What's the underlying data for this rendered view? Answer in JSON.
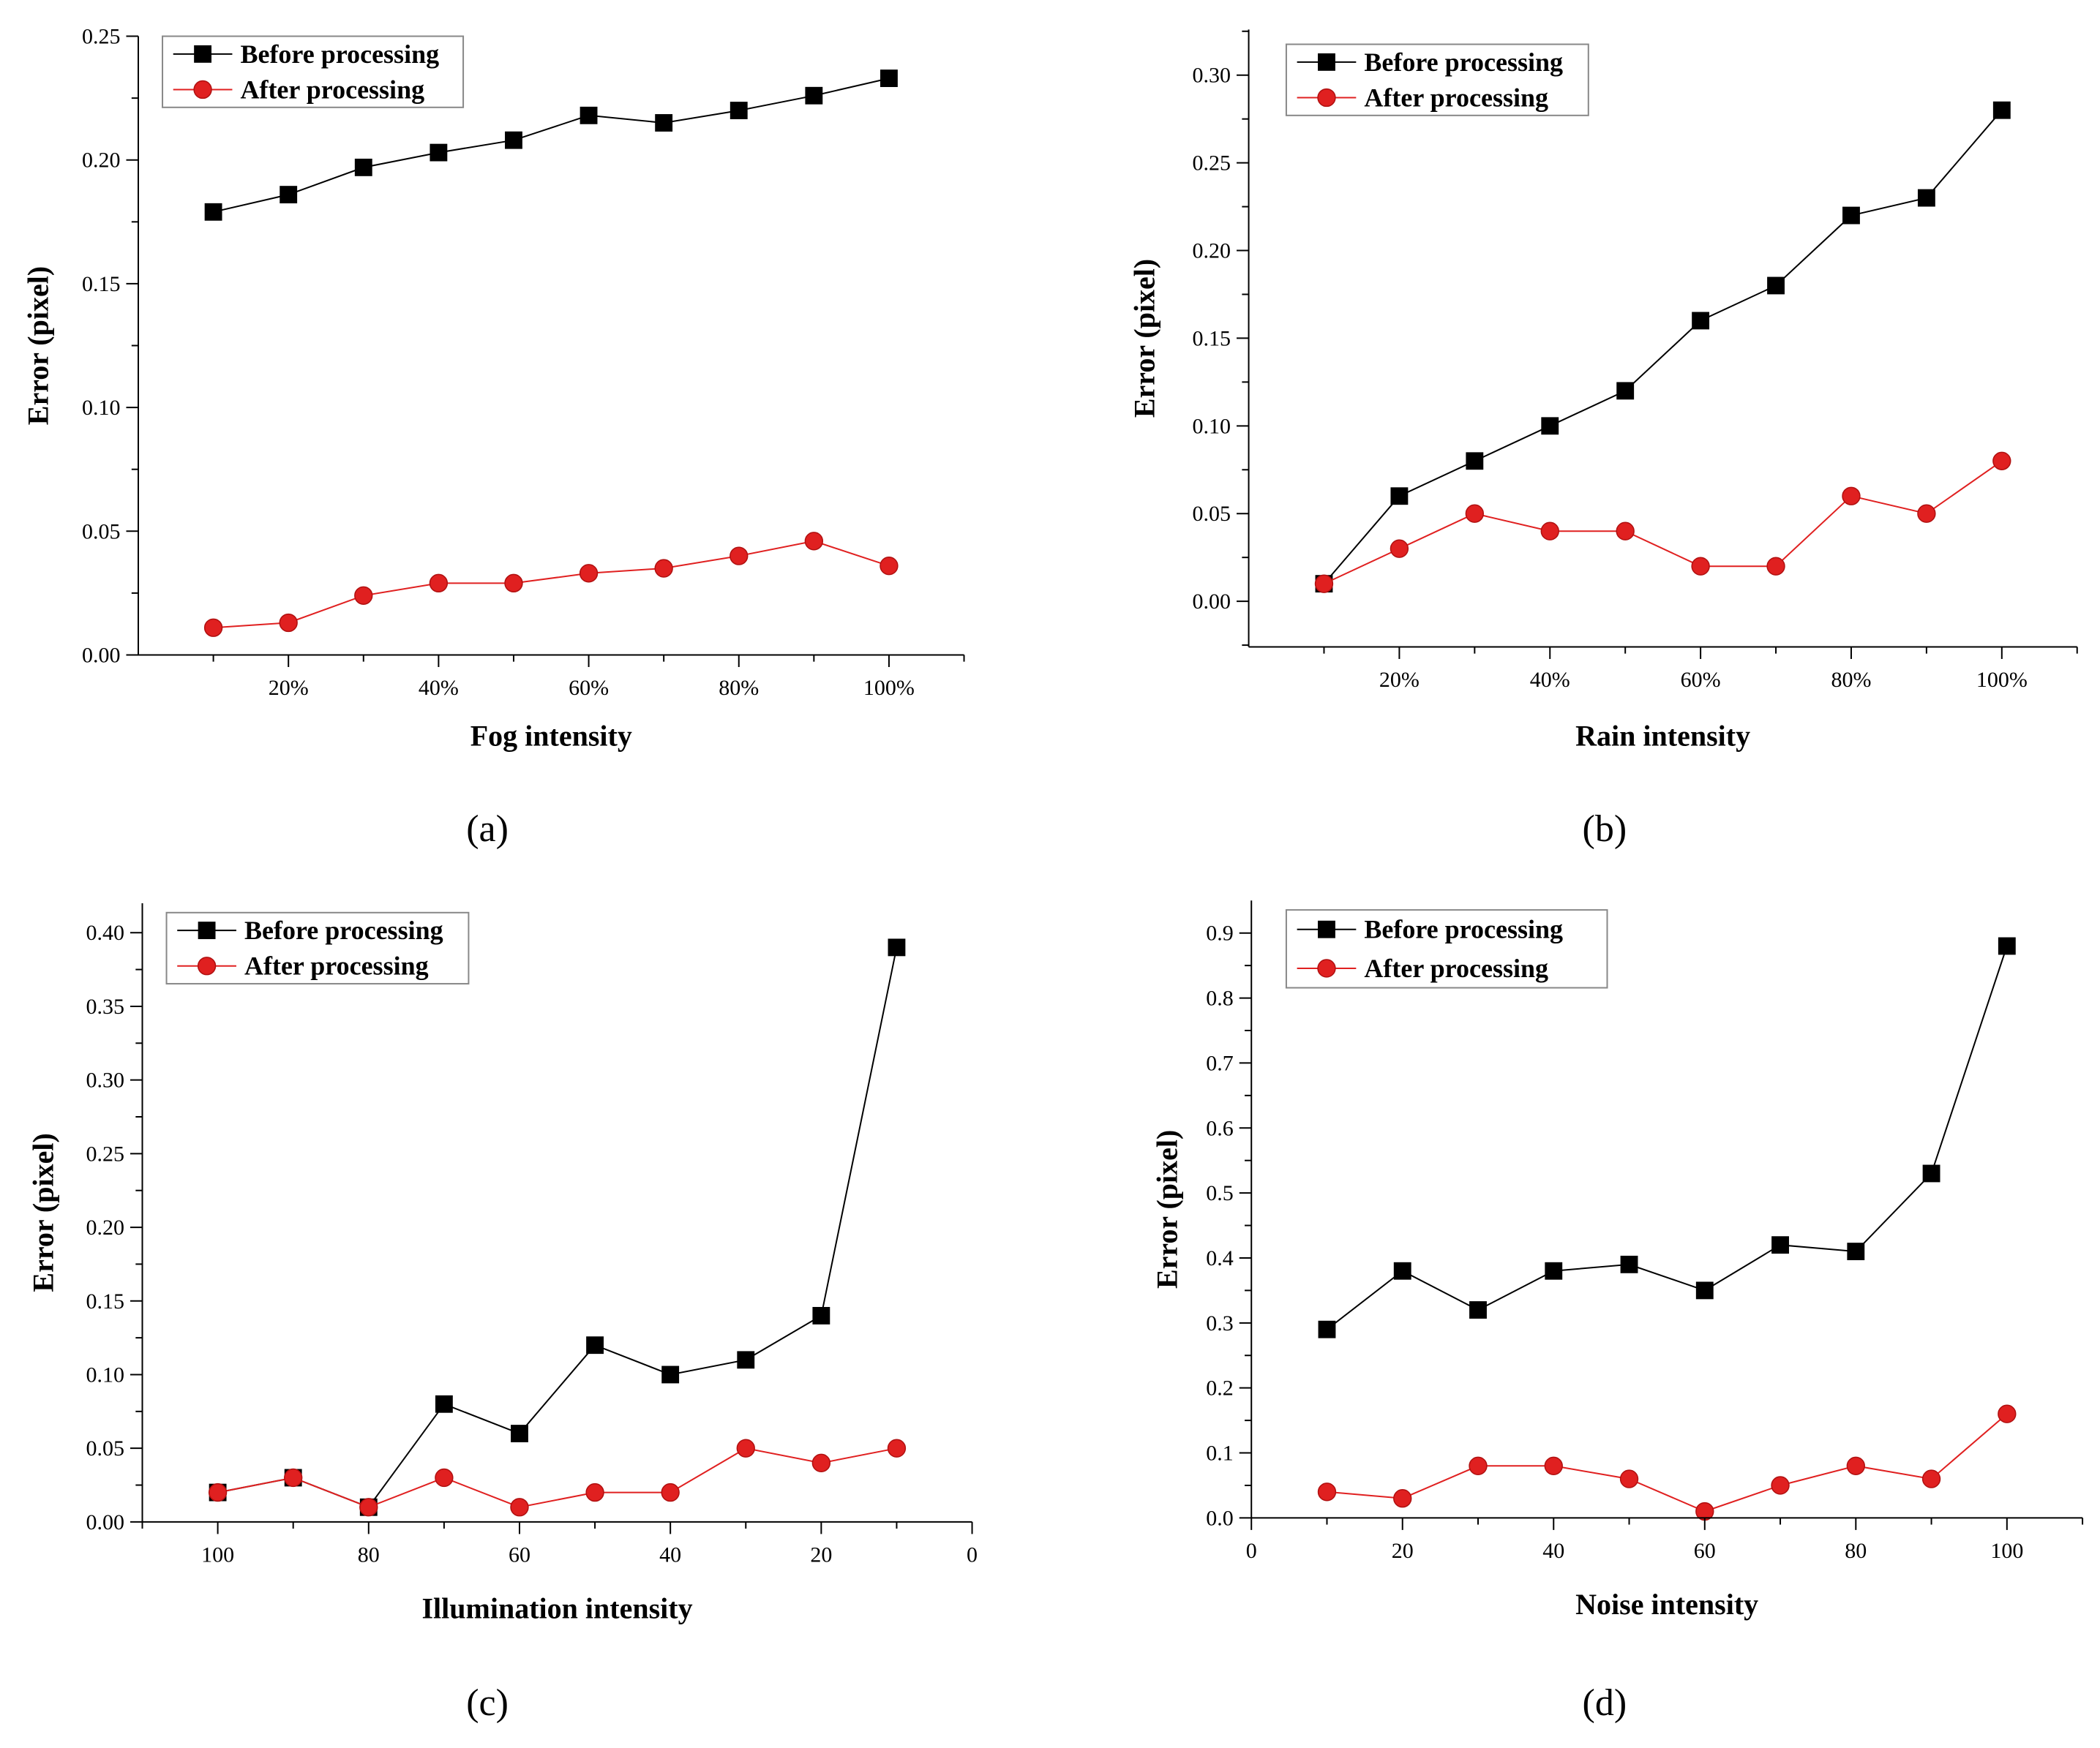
{
  "colors": {
    "before": "#000000",
    "after": "#e02020",
    "after_marker_stroke": "#b01010",
    "axis": "#000000",
    "background": "#ffffff"
  },
  "legend": {
    "before_label": "Before processing",
    "after_label": "After processing",
    "before_marker": "square",
    "after_marker": "circle",
    "placement": "top-left"
  },
  "chart_data": [
    {
      "type": "line",
      "panel_label": "(a)",
      "xlabel": "Fog intensity",
      "ylabel": "Error (pixel)",
      "x": [
        10,
        20,
        30,
        40,
        50,
        60,
        70,
        80,
        90,
        100
      ],
      "xlim": [
        0,
        110
      ],
      "x_ticks": [
        20,
        40,
        60,
        80,
        100
      ],
      "x_tick_labels": [
        "20%",
        "40%",
        "60%",
        "80%",
        "100%"
      ],
      "ylim": [
        0,
        0.25
      ],
      "y_ticks": [
        0,
        0.05,
        0.1,
        0.15,
        0.2,
        0.25
      ],
      "y_tick_labels": [
        "0.00",
        "0.05",
        "0.10",
        "0.15",
        "0.20",
        "0.25"
      ],
      "grid": false,
      "series": [
        {
          "name": "Before processing",
          "values": [
            0.179,
            0.186,
            0.197,
            0.203,
            0.208,
            0.218,
            0.215,
            0.22,
            0.226,
            0.233
          ]
        },
        {
          "name": "After processing",
          "values": [
            0.011,
            0.013,
            0.024,
            0.029,
            0.029,
            0.033,
            0.035,
            0.04,
            0.046,
            0.036
          ]
        }
      ]
    },
    {
      "type": "line",
      "panel_label": "(b)",
      "xlabel": "Rain intensity",
      "ylabel": "Error (pixel)",
      "x": [
        10,
        20,
        30,
        40,
        50,
        60,
        70,
        80,
        90,
        100
      ],
      "xlim": [
        0,
        110
      ],
      "x_ticks": [
        20,
        40,
        60,
        80,
        100
      ],
      "x_tick_labels": [
        "20%",
        "40%",
        "60%",
        "80%",
        "100%"
      ],
      "ylim": [
        -0.026,
        0.326
      ],
      "y_ticks": [
        0,
        0.05,
        0.1,
        0.15,
        0.2,
        0.25,
        0.3
      ],
      "y_tick_labels": [
        "0.00",
        "0.05",
        "0.10",
        "0.15",
        "0.20",
        "0.25",
        "0.30"
      ],
      "grid": false,
      "series": [
        {
          "name": "Before processing",
          "values": [
            0.01,
            0.06,
            0.08,
            0.1,
            0.12,
            0.16,
            0.18,
            0.22,
            0.23,
            0.28
          ]
        },
        {
          "name": "After processing",
          "values": [
            0.01,
            0.03,
            0.05,
            0.04,
            0.04,
            0.02,
            0.02,
            0.06,
            0.05,
            0.08
          ]
        }
      ]
    },
    {
      "type": "line",
      "panel_label": "(c)",
      "xlabel": "Illumination intensity",
      "ylabel": "Error (pixel)",
      "x": [
        100,
        90,
        80,
        70,
        60,
        50,
        40,
        30,
        20,
        10
      ],
      "xlim": [
        110,
        0
      ],
      "x_ticks": [
        100,
        80,
        60,
        40,
        20,
        0
      ],
      "x_tick_labels": [
        "100",
        "80",
        "60",
        "40",
        "20",
        "0"
      ],
      "ylim": [
        0,
        0.42
      ],
      "y_ticks": [
        0,
        0.05,
        0.1,
        0.15,
        0.2,
        0.25,
        0.3,
        0.35,
        0.4
      ],
      "y_tick_labels": [
        "0.00",
        "0.05",
        "0.10",
        "0.15",
        "0.20",
        "0.25",
        "0.30",
        "0.35",
        "0.40"
      ],
      "grid": false,
      "series": [
        {
          "name": "Before processing",
          "values": [
            0.02,
            0.03,
            0.01,
            0.08,
            0.06,
            0.12,
            0.1,
            0.11,
            0.14,
            0.39
          ]
        },
        {
          "name": "After processing",
          "values": [
            0.02,
            0.03,
            0.01,
            0.03,
            0.01,
            0.02,
            0.02,
            0.05,
            0.04,
            0.05
          ]
        }
      ]
    },
    {
      "type": "line",
      "panel_label": "(d)",
      "xlabel": "Noise intensity",
      "ylabel": "Error (pixel)",
      "x": [
        10,
        20,
        30,
        40,
        50,
        60,
        70,
        80,
        90,
        100
      ],
      "xlim": [
        0,
        110
      ],
      "x_ticks": [
        0,
        20,
        40,
        60,
        80,
        100
      ],
      "x_tick_labels": [
        "0",
        "20",
        "40",
        "60",
        "80",
        "100"
      ],
      "ylim": [
        0,
        0.95
      ],
      "y_ticks": [
        0,
        0.1,
        0.2,
        0.3,
        0.4,
        0.5,
        0.6,
        0.7,
        0.8,
        0.9
      ],
      "y_tick_labels": [
        "0.0",
        "0.1",
        "0.2",
        "0.3",
        "0.4",
        "0.5",
        "0.6",
        "0.7",
        "0.8",
        "0.9"
      ],
      "grid": false,
      "series": [
        {
          "name": "Before processing",
          "values": [
            0.29,
            0.38,
            0.32,
            0.38,
            0.39,
            0.35,
            0.42,
            0.41,
            0.53,
            0.88
          ]
        },
        {
          "name": "After processing",
          "values": [
            0.04,
            0.03,
            0.08,
            0.08,
            0.06,
            0.01,
            0.05,
            0.08,
            0.06,
            0.16
          ]
        }
      ]
    }
  ]
}
